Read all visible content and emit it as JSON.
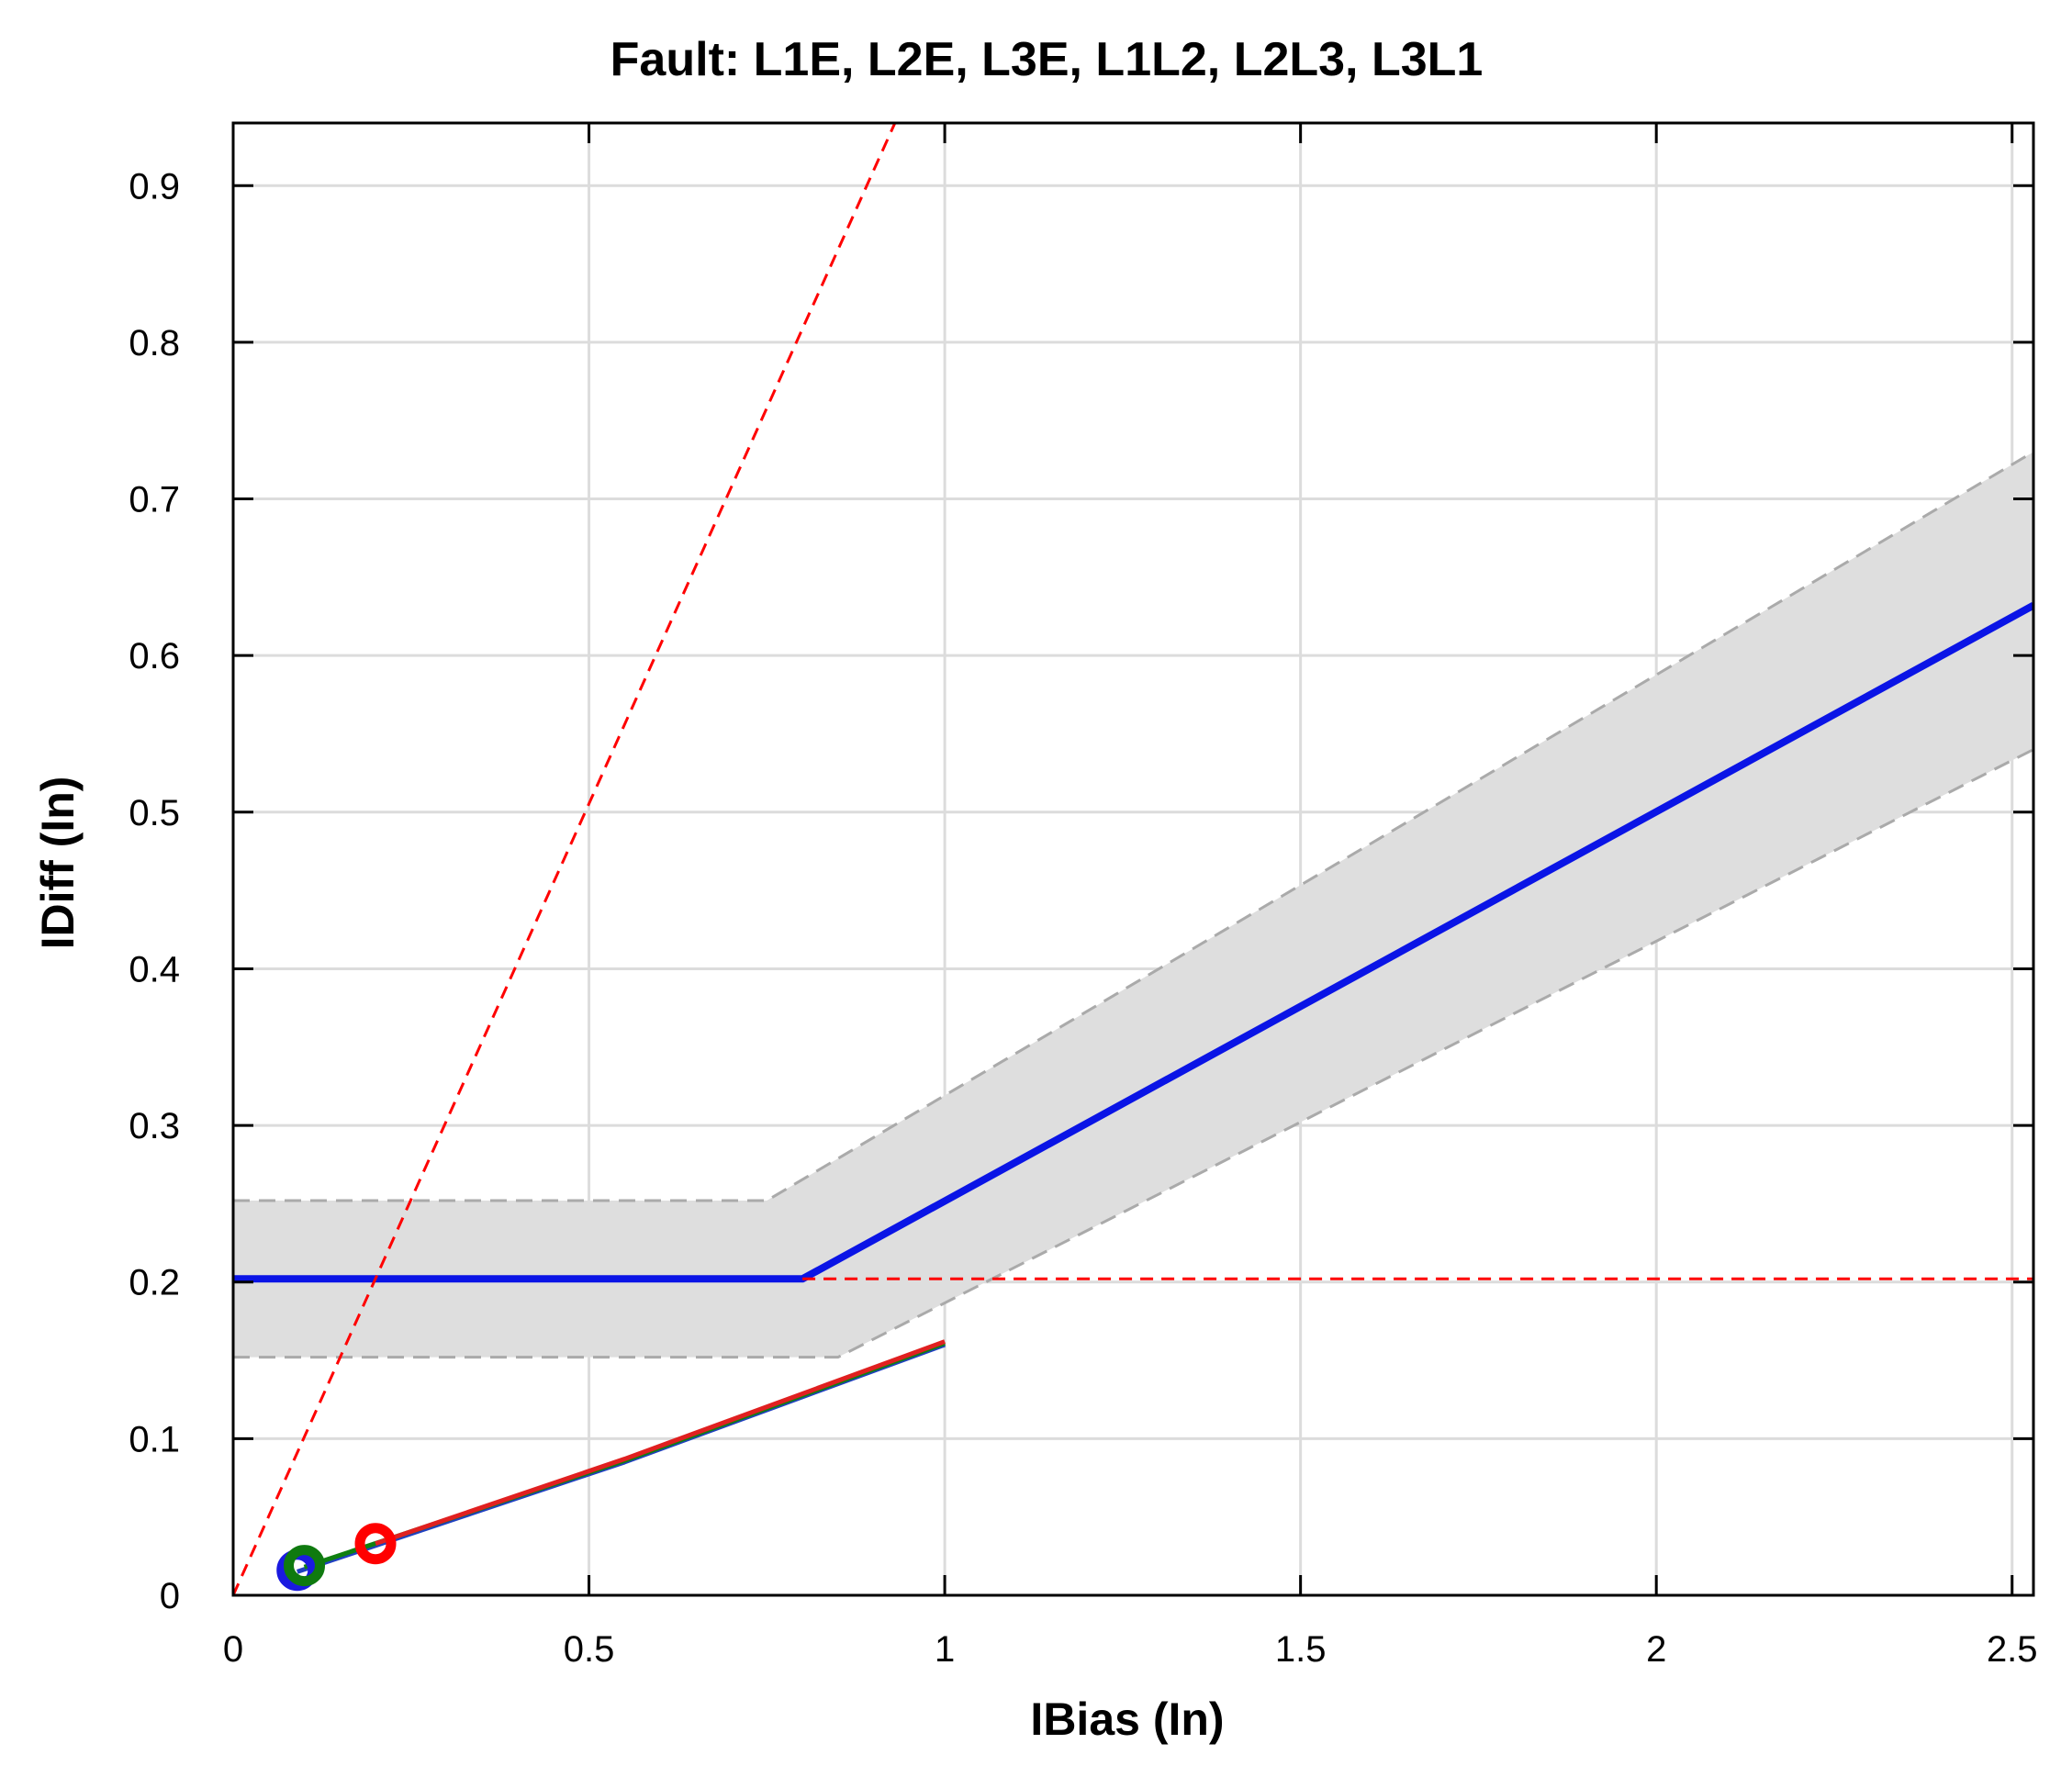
{
  "chart_data": {
    "type": "line",
    "title": "Fault: L1E, L2E, L3E, L1L2, L2L3, L3L1",
    "xlabel": "IBias (In)",
    "ylabel": "IDiff (In)",
    "xlim": [
      0,
      2.53
    ],
    "ylim": [
      0,
      0.94
    ],
    "x_ticks": [
      0,
      0.5,
      1,
      1.5,
      2,
      2.5
    ],
    "x_tick_labels": [
      "0",
      "0.5",
      "1",
      "1.5",
      "2",
      "2.5"
    ],
    "y_ticks": [
      0,
      0.1,
      0.2,
      0.3,
      0.4,
      0.5,
      0.6,
      0.7,
      0.8,
      0.9
    ],
    "y_tick_labels": [
      "0",
      "0.1",
      "0.2",
      "0.3",
      "0.4",
      "0.5",
      "0.6",
      "0.7",
      "0.8",
      "0.9"
    ],
    "grid": true,
    "band": {
      "upper": {
        "x": [
          0,
          0.75,
          2.53
        ],
        "y": [
          0.252,
          0.252,
          0.73
        ]
      },
      "lower": {
        "x": [
          0,
          0.85,
          2.53
        ],
        "y": [
          0.152,
          0.152,
          0.54
        ]
      },
      "fill_color": "#dedede",
      "edge_color": "#aaaaaa"
    },
    "series": [
      {
        "x": [
          0,
          0.8,
          2.53
        ],
        "y": [
          0.202,
          0.202,
          0.632
        ],
        "color": "#0a14e6",
        "style": "solid"
      },
      {
        "x": [
          0,
          0.93
        ],
        "y": [
          0,
          0.94
        ],
        "color": "#ff0000",
        "style": "dashed"
      },
      {
        "x": [
          0.8,
          2.53
        ],
        "y": [
          0.202,
          0.202
        ],
        "color": "#ff0000",
        "style": "dashed"
      },
      {
        "x": [
          0.09,
          0.55,
          1.0
        ],
        "y": [
          0.015,
          0.085,
          0.16
        ],
        "color": "#2040c0",
        "style": "solid"
      },
      {
        "x": [
          0.1,
          0.55,
          1.0
        ],
        "y": [
          0.018,
          0.086,
          0.161
        ],
        "color": "#108010",
        "style": "solid"
      },
      {
        "x": [
          0.2,
          0.55,
          1.0
        ],
        "y": [
          0.033,
          0.087,
          0.162
        ],
        "color": "#e02020",
        "style": "solid"
      }
    ],
    "markers": [
      {
        "x": 0.09,
        "y": 0.016,
        "color": "#1a1ae0"
      },
      {
        "x": 0.1,
        "y": 0.019,
        "color": "#0f7a0f"
      },
      {
        "x": 0.2,
        "y": 0.033,
        "color": "#ff0000"
      }
    ]
  }
}
